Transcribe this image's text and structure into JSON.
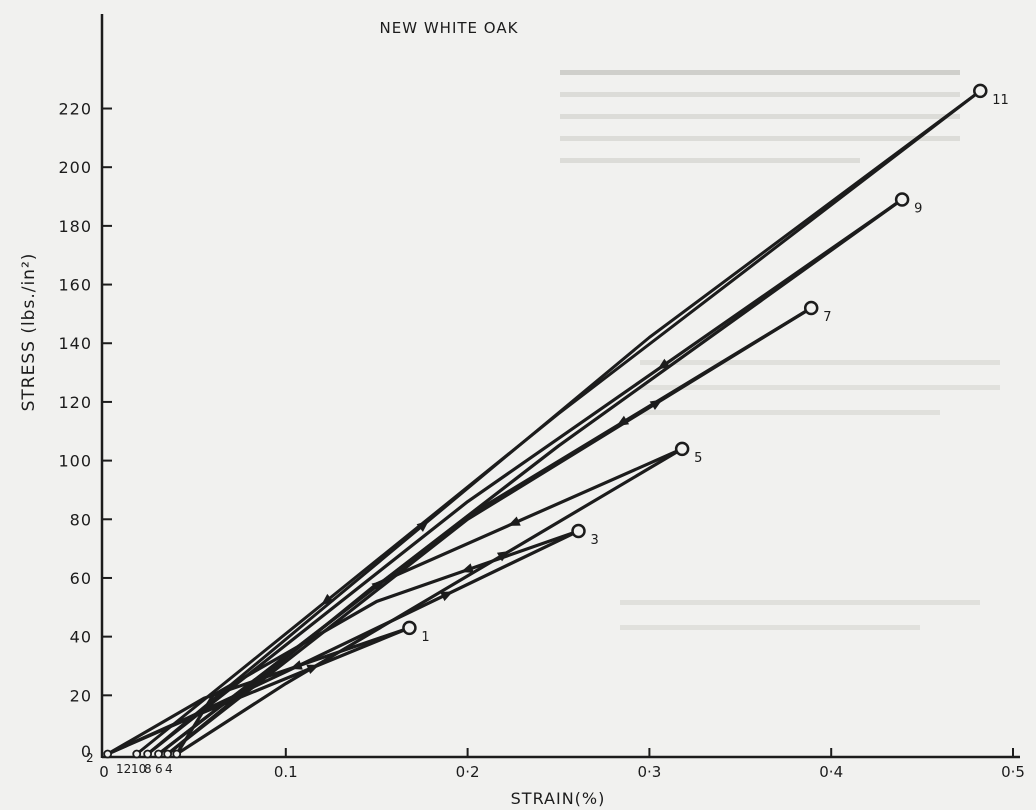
{
  "chart_data": {
    "type": "line",
    "title": "NEW WHITE OAK",
    "xlabel": "STRAIN(%)",
    "ylabel": "STRESS (lbs./in²)",
    "xlim": [
      0,
      0.5
    ],
    "ylim": [
      0,
      220
    ],
    "grid": false,
    "legend": "none",
    "x_ticks": [
      0,
      0.1,
      0.2,
      0.3,
      0.4,
      0.5
    ],
    "x_tick_labels": [
      "0",
      "0.1",
      "0·2",
      "0·3",
      "0·4",
      "0·5"
    ],
    "y_ticks": [
      0,
      20,
      40,
      60,
      80,
      100,
      120,
      140,
      160,
      180,
      200,
      220
    ],
    "y_tick_labels": [
      "0",
      "20",
      "40",
      "60",
      "80",
      "100",
      "120",
      "140",
      "160",
      "180",
      "200",
      "220"
    ],
    "peak_points": [
      {
        "label": "1",
        "x": 0.168,
        "y": 43
      },
      {
        "label": "3",
        "x": 0.261,
        "y": 76
      },
      {
        "label": "5",
        "x": 0.318,
        "y": 104
      },
      {
        "label": "7",
        "x": 0.389,
        "y": 152
      },
      {
        "label": "9",
        "x": 0.439,
        "y": 189
      },
      {
        "label": "11",
        "x": 0.482,
        "y": 226
      }
    ],
    "origin_points": [
      {
        "label": "2",
        "x": 0.002,
        "y": 0
      },
      {
        "label": "12",
        "x": 0.018,
        "y": 0
      },
      {
        "label": "10",
        "x": 0.024,
        "y": 0
      },
      {
        "label": "8",
        "x": 0.03,
        "y": 0
      },
      {
        "label": "6",
        "x": 0.035,
        "y": 0
      },
      {
        "label": "4",
        "x": 0.04,
        "y": 0
      }
    ],
    "series": [
      {
        "x": [
          0.002,
          0.05,
          0.168
        ],
        "y": [
          0,
          13,
          43
        ]
      },
      {
        "x": [
          0.168,
          0.055,
          0.002
        ],
        "y": [
          43,
          19,
          0
        ]
      },
      {
        "x": [
          0.002,
          0.045,
          0.1,
          0.261
        ],
        "y": [
          0,
          12,
          28,
          76
        ]
      },
      {
        "x": [
          0.261,
          0.15,
          0.06,
          0.04
        ],
        "y": [
          76,
          52,
          20,
          0
        ]
      },
      {
        "x": [
          0.04,
          0.1,
          0.318
        ],
        "y": [
          0,
          24,
          104
        ]
      },
      {
        "x": [
          0.318,
          0.15,
          0.035
        ],
        "y": [
          104,
          58,
          0
        ]
      },
      {
        "x": [
          0.035,
          0.2,
          0.389
        ],
        "y": [
          0,
          80,
          152
        ]
      },
      {
        "x": [
          0.389,
          0.2,
          0.03
        ],
        "y": [
          152,
          81,
          0
        ]
      },
      {
        "x": [
          0.03,
          0.25,
          0.439
        ],
        "y": [
          0,
          105,
          189
        ]
      },
      {
        "x": [
          0.439,
          0.2,
          0.024
        ],
        "y": [
          189,
          86,
          0
        ]
      },
      {
        "x": [
          0.024,
          0.3,
          0.482
        ],
        "y": [
          0,
          142,
          226
        ]
      },
      {
        "x": [
          0.482,
          0.25,
          0.018
        ],
        "y": [
          226,
          116,
          0
        ]
      }
    ]
  },
  "colors": {
    "ink": "#1c1c1c",
    "paper": "#f1f1ef"
  }
}
